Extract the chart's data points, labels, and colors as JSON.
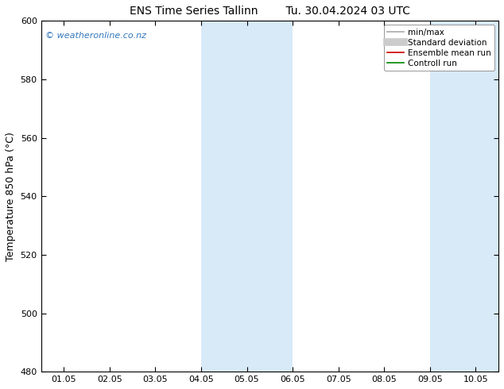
{
  "title": "ENS Time Series Tallinn        Tu. 30.04.2024 03 UTC",
  "ylabel": "Temperature 850 hPa (°C)",
  "ylim": [
    480,
    600
  ],
  "yticks": [
    480,
    500,
    520,
    540,
    560,
    580,
    600
  ],
  "xtick_labels": [
    "01.05",
    "02.05",
    "03.05",
    "04.05",
    "05.05",
    "06.05",
    "07.05",
    "08.05",
    "09.05",
    "10.05"
  ],
  "x_positions": [
    0,
    1,
    2,
    3,
    4,
    5,
    6,
    7,
    8,
    9
  ],
  "xlim": [
    -0.5,
    9.5
  ],
  "watermark": "© weatheronline.co.nz",
  "watermark_color": "#3377bb",
  "background_color": "#ffffff",
  "plot_bg_color": "#ffffff",
  "shaded_bands": [
    {
      "x_start": 3.0,
      "x_end": 5.0,
      "color": "#d8eaf8"
    },
    {
      "x_start": 8.0,
      "x_end": 9.5,
      "color": "#d8eaf8"
    }
  ],
  "legend_entries": [
    {
      "label": "min/max",
      "color": "#aaaaaa",
      "lw": 1.2,
      "type": "line"
    },
    {
      "label": "Standard deviation",
      "color": "#cccccc",
      "lw": 7,
      "type": "line"
    },
    {
      "label": "Ensemble mean run",
      "color": "#cc0000",
      "lw": 1.2,
      "type": "line"
    },
    {
      "label": "Controll run",
      "color": "#008800",
      "lw": 1.2,
      "type": "line"
    }
  ],
  "title_fontsize": 10,
  "axis_label_fontsize": 9,
  "tick_fontsize": 8,
  "watermark_fontsize": 8,
  "legend_fontsize": 7.5
}
